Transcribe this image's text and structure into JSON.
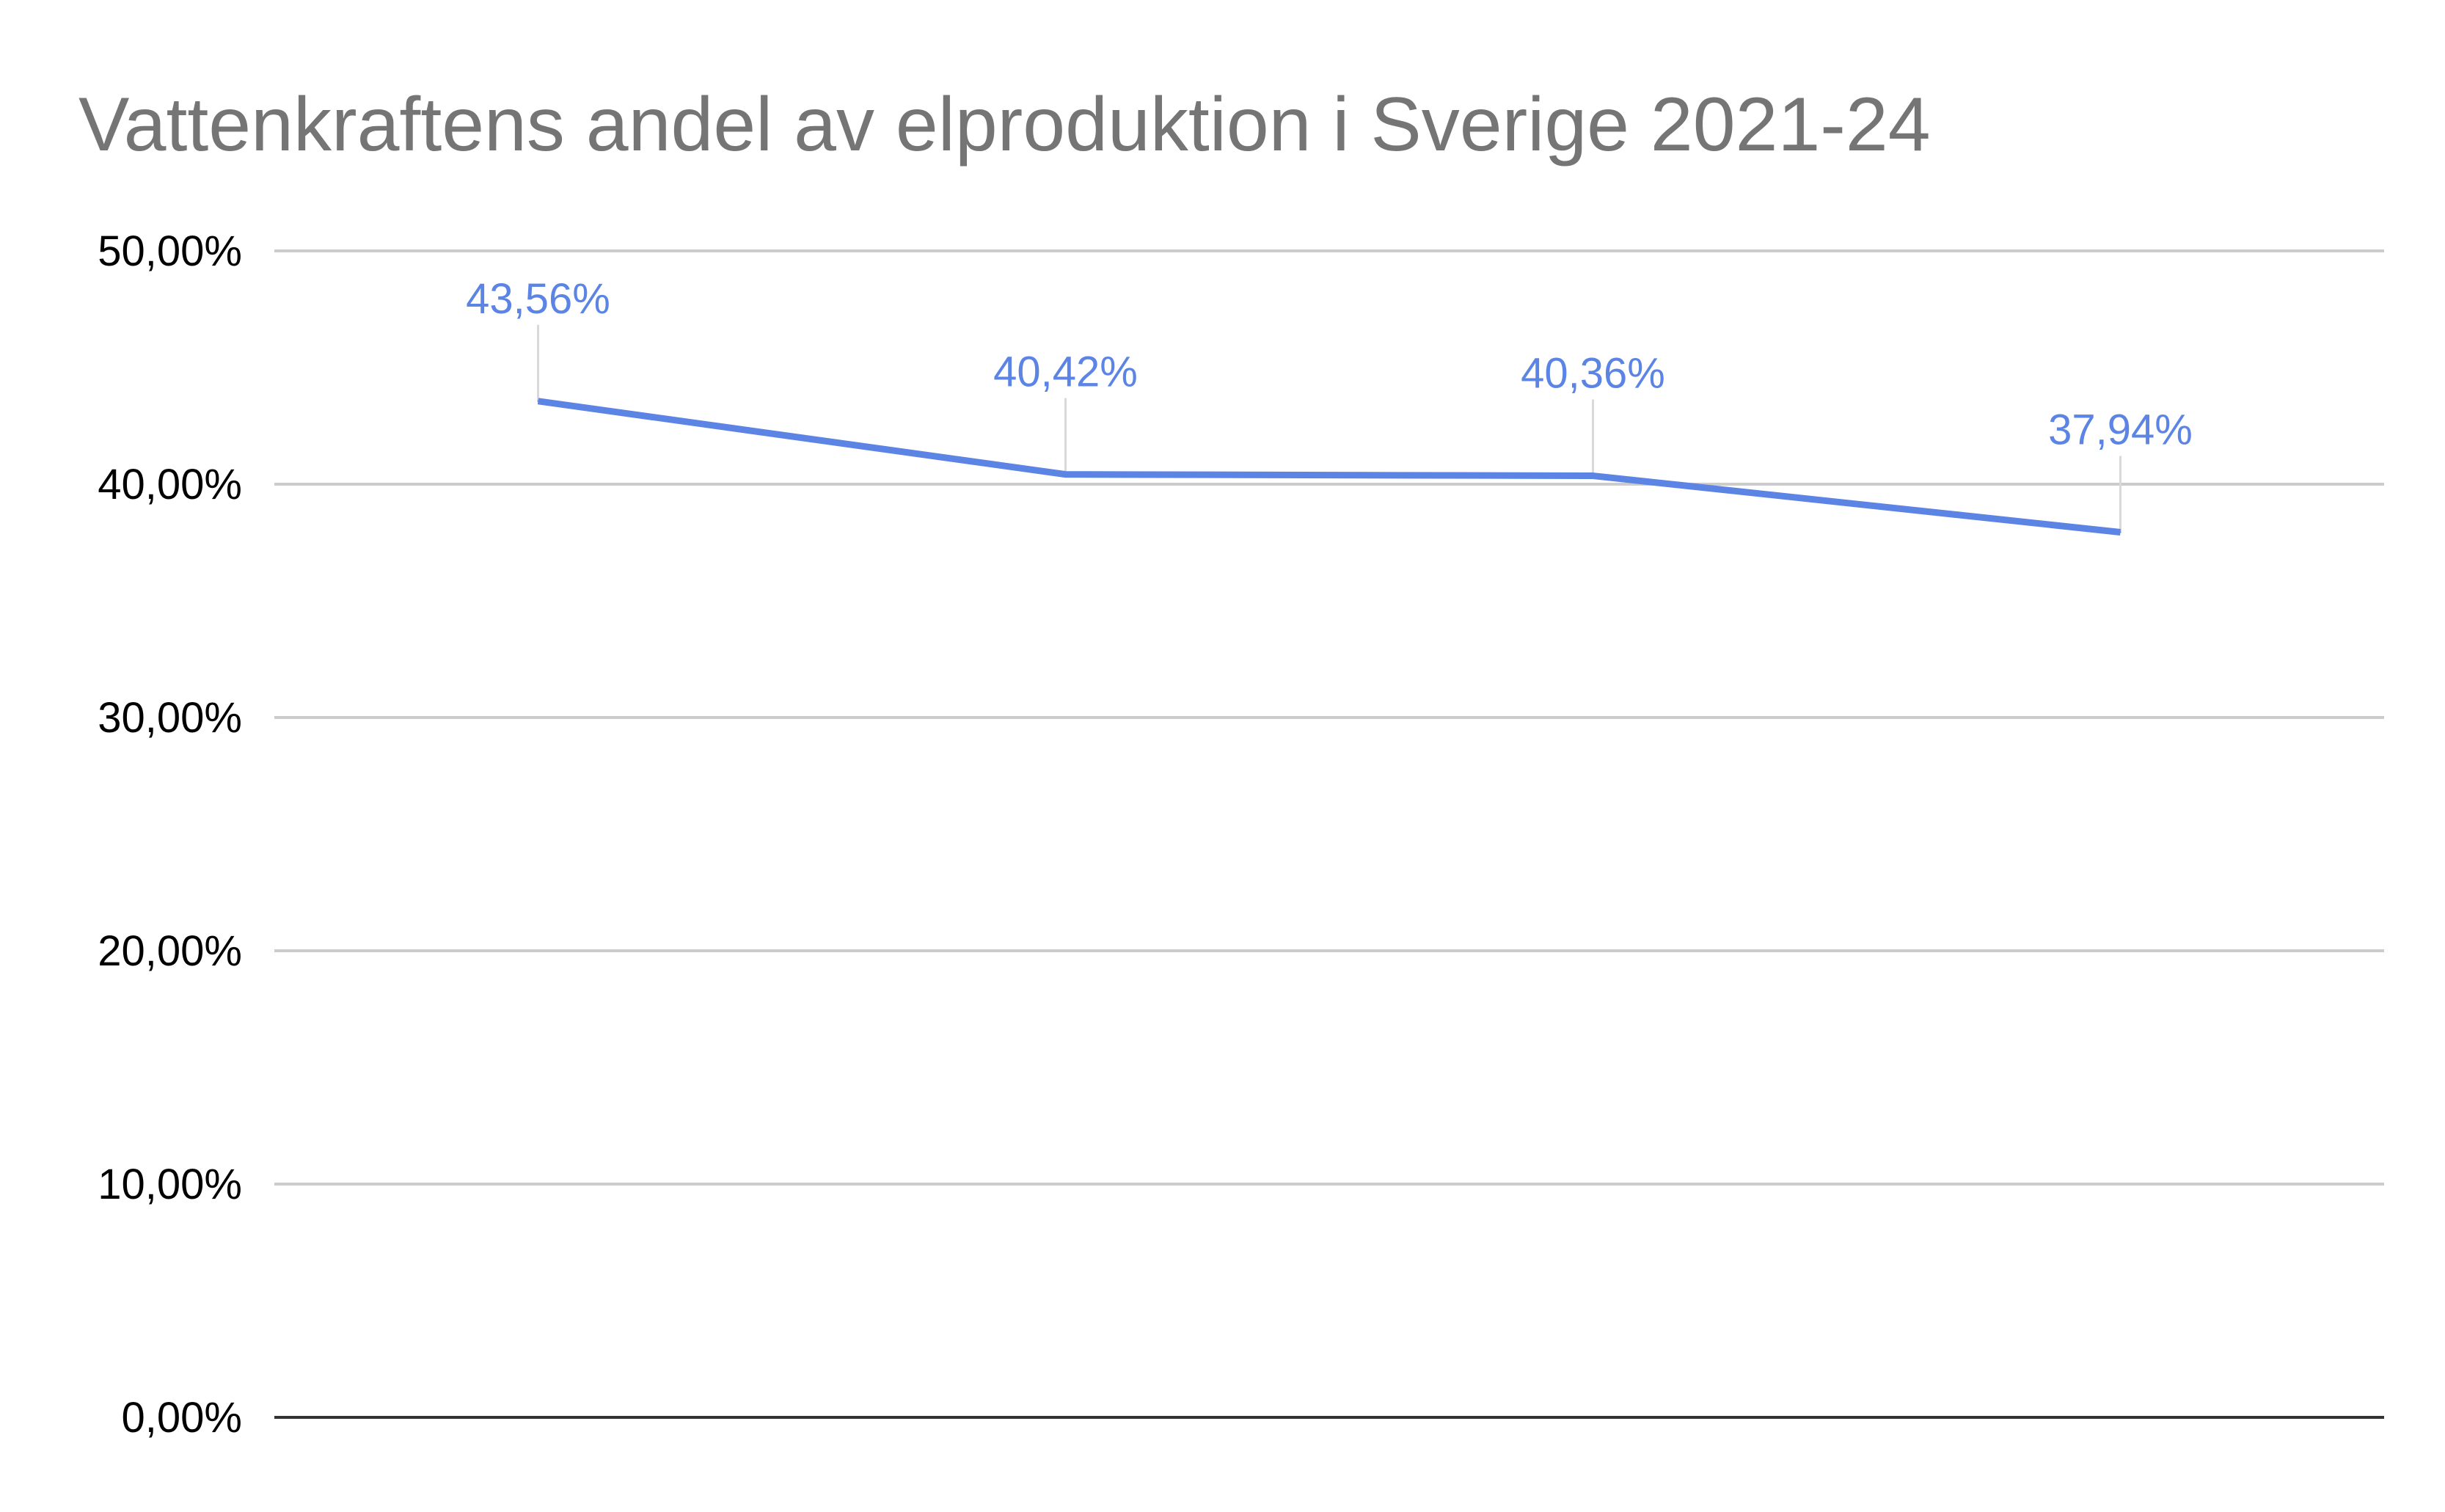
{
  "chart_data": {
    "type": "line",
    "title": "Vattenkraftens andel av elproduktion i Sverige 2021-24",
    "xlabel": "",
    "ylabel": "",
    "categories": [
      "",
      "",
      "",
      ""
    ],
    "series": [
      {
        "values": [
          43.56,
          40.42,
          40.36,
          37.94
        ],
        "labels": [
          "43,56%",
          "40,42%",
          "40,36%",
          "37,94%"
        ],
        "color": "#5b84e5"
      }
    ],
    "ylim": [
      0,
      50
    ],
    "yticks": [
      0,
      10,
      20,
      30,
      40,
      50
    ],
    "ytick_labels": [
      "0,00%",
      "10,00%",
      "20,00%",
      "30,00%",
      "40,00%",
      "50,00%"
    ],
    "grid": true,
    "legend": "none"
  }
}
